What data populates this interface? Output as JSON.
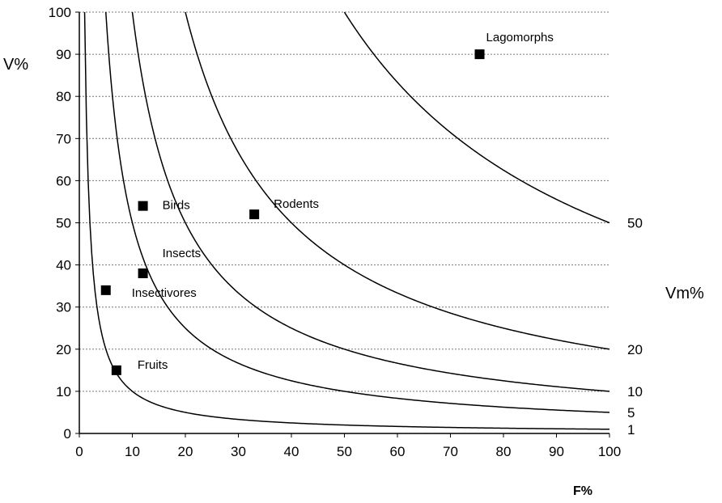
{
  "chart_data": {
    "type": "scatter",
    "xlabel": "F%",
    "ylabel": "V%",
    "right_label": "Vm%",
    "xlim": [
      0,
      100
    ],
    "ylim": [
      0,
      100
    ],
    "x_ticks": [
      "0",
      "10",
      "20",
      "30",
      "40",
      "50",
      "60",
      "70",
      "80",
      "90",
      "100"
    ],
    "y_ticks": [
      "0",
      "10",
      "20",
      "30",
      "40",
      "50",
      "60",
      "70",
      "80",
      "90",
      "100"
    ],
    "grid": "horizontal dotted",
    "points": [
      {
        "label": "Lagomorphs",
        "x": 75.5,
        "y": 90
      },
      {
        "label": "Birds",
        "x": 12,
        "y": 54
      },
      {
        "label": "Rodents",
        "x": 33,
        "y": 52
      },
      {
        "label": "Insects",
        "x": 12,
        "y": 38
      },
      {
        "label": "Insectivores",
        "x": 5,
        "y": 34
      },
      {
        "label": "Fruits",
        "x": 7,
        "y": 15
      }
    ],
    "isolines": [
      {
        "label": "50",
        "k": 50
      },
      {
        "label": "20",
        "k": 20
      },
      {
        "label": "10",
        "k": 10
      },
      {
        "label": "5",
        "k": 5
      },
      {
        "label": "1",
        "k": 1
      }
    ]
  }
}
